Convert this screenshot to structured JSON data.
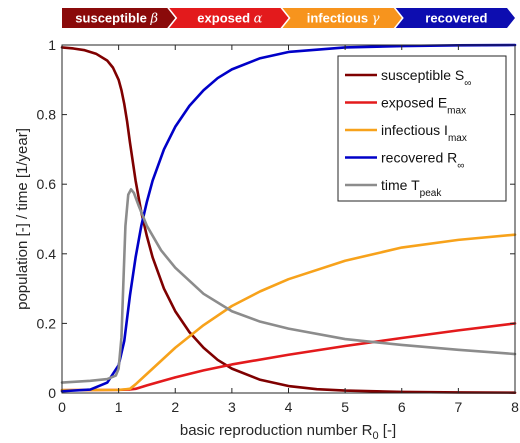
{
  "banner": [
    {
      "label": "susceptible",
      "greek": "β",
      "color": "#8a0a0a"
    },
    {
      "label": "exposed",
      "greek": "α",
      "color": "#e31a1c"
    },
    {
      "label": "infectious",
      "greek": "γ",
      "color": "#f7941d"
    },
    {
      "label": "recovered",
      "greek": "",
      "color": "#0d0db0"
    }
  ],
  "chart_data": {
    "type": "line",
    "xlabel": "basic reproduction number R",
    "xlabel_sub": "0",
    "xlabel_unit": " [-]",
    "ylabel": "population [-] / time [1/year]",
    "xlim": [
      0,
      8
    ],
    "ylim": [
      0,
      1
    ],
    "xticks": [
      "0",
      "1",
      "2",
      "3",
      "4",
      "5",
      "6",
      "7",
      "8"
    ],
    "yticks": [
      "0",
      "0.2",
      "0.4",
      "0.6",
      "0.8",
      "1"
    ],
    "legend_position": "top-right",
    "series": [
      {
        "name": "susceptible S",
        "legend_sub": "∞",
        "color": "#7f0000",
        "x": [
          0,
          0.2,
          0.4,
          0.6,
          0.8,
          0.9,
          1.0,
          1.05,
          1.1,
          1.15,
          1.2,
          1.3,
          1.4,
          1.5,
          1.6,
          1.8,
          2.0,
          2.25,
          2.5,
          2.75,
          3.0,
          3.5,
          4.0,
          4.5,
          5.0,
          6.0,
          7.0,
          8.0
        ],
        "y": [
          0.993,
          0.99,
          0.985,
          0.975,
          0.955,
          0.935,
          0.9,
          0.87,
          0.83,
          0.78,
          0.72,
          0.61,
          0.52,
          0.45,
          0.39,
          0.3,
          0.235,
          0.175,
          0.13,
          0.095,
          0.07,
          0.038,
          0.02,
          0.011,
          0.007,
          0.003,
          0.0015,
          0.001
        ]
      },
      {
        "name": "exposed E",
        "legend_sub": "max",
        "color": "#e31a1c",
        "x": [
          0,
          1.0,
          1.2,
          1.3,
          1.5,
          2.0,
          2.5,
          3.0,
          4.0,
          5.0,
          6.0,
          7.0,
          8.0
        ],
        "y": [
          0.008,
          0.009,
          0.01,
          0.012,
          0.022,
          0.045,
          0.065,
          0.082,
          0.11,
          0.135,
          0.158,
          0.18,
          0.2
        ]
      },
      {
        "name": "infectious I",
        "legend_sub": "max",
        "color": "#f7a21b",
        "x": [
          0,
          1.0,
          1.2,
          1.3,
          1.5,
          2.0,
          2.5,
          3.0,
          3.5,
          4.0,
          5.0,
          6.0,
          7.0,
          8.0
        ],
        "y": [
          0.008,
          0.009,
          0.012,
          0.025,
          0.055,
          0.13,
          0.195,
          0.25,
          0.292,
          0.327,
          0.38,
          0.418,
          0.44,
          0.455
        ]
      },
      {
        "name": "recovered R",
        "legend_sub": "∞",
        "color": "#0000c8",
        "x": [
          0,
          0.5,
          0.8,
          1.0,
          1.1,
          1.2,
          1.3,
          1.4,
          1.5,
          1.6,
          1.8,
          2.0,
          2.25,
          2.5,
          2.75,
          3.0,
          3.5,
          4.0,
          5.0,
          6.0,
          7.0,
          8.0
        ],
        "y": [
          0.005,
          0.01,
          0.03,
          0.08,
          0.15,
          0.28,
          0.39,
          0.48,
          0.55,
          0.61,
          0.7,
          0.765,
          0.825,
          0.87,
          0.905,
          0.93,
          0.962,
          0.98,
          0.993,
          0.997,
          0.999,
          1.0
        ]
      },
      {
        "name": "time T",
        "legend_sub": "peak",
        "color": "#8c8c8c",
        "x": [
          0,
          0.5,
          0.8,
          0.95,
          1.0,
          1.05,
          1.08,
          1.12,
          1.17,
          1.22,
          1.27,
          1.35,
          1.5,
          1.75,
          2.0,
          2.5,
          3.0,
          3.5,
          4.0,
          5.0,
          6.0,
          7.0,
          8.0
        ],
        "y": [
          0.03,
          0.035,
          0.04,
          0.05,
          0.07,
          0.16,
          0.3,
          0.48,
          0.57,
          0.585,
          0.575,
          0.54,
          0.48,
          0.41,
          0.36,
          0.285,
          0.235,
          0.205,
          0.185,
          0.155,
          0.138,
          0.124,
          0.112
        ]
      }
    ]
  }
}
